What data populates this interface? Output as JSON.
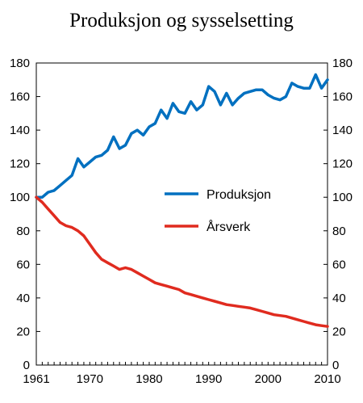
{
  "chart_data": {
    "type": "line",
    "title": "Produksjon og sysselsetting",
    "xlabel": "",
    "ylabel": "",
    "xlim": [
      1961,
      2010
    ],
    "ylim": [
      0,
      180
    ],
    "x_ticks": [
      "1961",
      "1970",
      "1980",
      "1990",
      "2000",
      "2010"
    ],
    "y_ticks": [
      "0",
      "20",
      "40",
      "60",
      "80",
      "100",
      "120",
      "140",
      "160",
      "180"
    ],
    "grid": false,
    "legend_position": "middle-right",
    "x": [
      1961,
      1962,
      1963,
      1964,
      1965,
      1966,
      1967,
      1968,
      1969,
      1970,
      1971,
      1972,
      1973,
      1974,
      1975,
      1976,
      1977,
      1978,
      1979,
      1980,
      1981,
      1982,
      1983,
      1984,
      1985,
      1986,
      1987,
      1988,
      1989,
      1990,
      1991,
      1992,
      1993,
      1994,
      1995,
      1996,
      1997,
      1998,
      1999,
      2000,
      2001,
      2002,
      2003,
      2004,
      2005,
      2006,
      2007,
      2008,
      2009,
      2010
    ],
    "series": [
      {
        "name": "Produksjon",
        "color": "#0070c0",
        "values": [
          100,
          100,
          103,
          104,
          107,
          110,
          113,
          123,
          118,
          121,
          124,
          125,
          128,
          136,
          129,
          131,
          138,
          140,
          137,
          142,
          144,
          152,
          147,
          156,
          151,
          150,
          157,
          152,
          155,
          166,
          163,
          155,
          162,
          155,
          159,
          162,
          163,
          164,
          164,
          161,
          159,
          158,
          160,
          168,
          166,
          165,
          165,
          173,
          165,
          170
        ]
      },
      {
        "name": "Årsverk",
        "color": "#e02b1f",
        "values": [
          100,
          97,
          93,
          89,
          85,
          83,
          82,
          80,
          77,
          72,
          67,
          63,
          61,
          59,
          57,
          58,
          57,
          55,
          53,
          51,
          49,
          48,
          47,
          46,
          45,
          43,
          42,
          41,
          40,
          39,
          38,
          37,
          36,
          35.5,
          35,
          34.5,
          34,
          33,
          32,
          31,
          30,
          29.5,
          29,
          28,
          27,
          26,
          25,
          24,
          23.5,
          23
        ]
      }
    ]
  }
}
